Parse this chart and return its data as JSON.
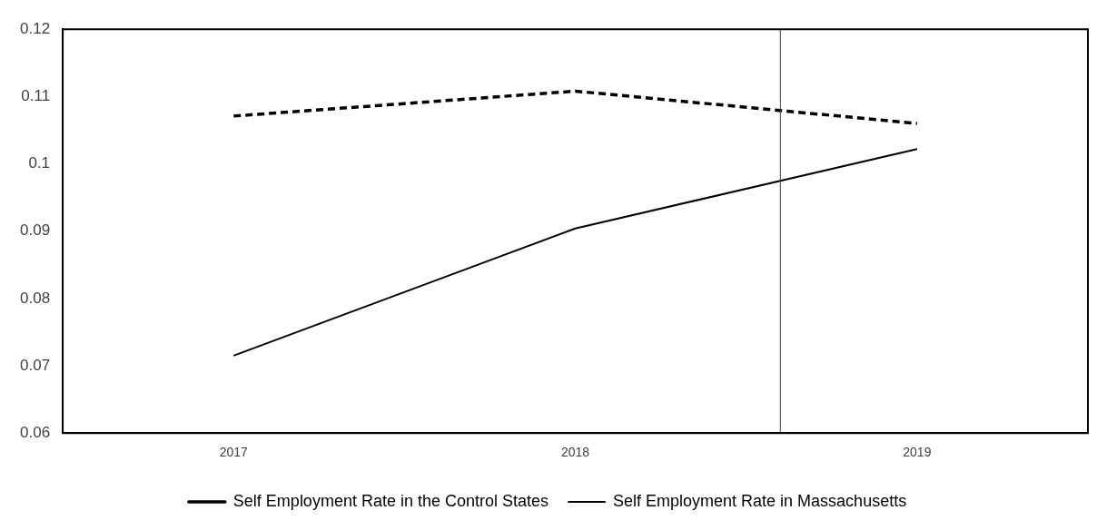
{
  "chart_data": {
    "type": "line",
    "x": [
      2017,
      2018,
      2019
    ],
    "xlim": [
      2016.5,
      2019.5
    ],
    "xticks": [
      2017,
      2018,
      2019
    ],
    "ylim": [
      0.06,
      0.12
    ],
    "yticks": [
      0.06,
      0.07,
      0.08,
      0.09,
      0.1,
      0.11,
      0.12
    ],
    "grid": false,
    "legend": "bottom",
    "marker": "none",
    "series": [
      {
        "name": "Self Employment Rate in the Control States",
        "color": "#000000",
        "line_style": "dashed",
        "values": [
          0.1071,
          0.1108,
          0.106
        ]
      },
      {
        "name": "Self Employment Rate in Massachusetts",
        "color": "#000000",
        "line_style": "solid",
        "values": [
          0.0715,
          0.0904,
          0.1022
        ]
      }
    ],
    "ref_lines": [
      {
        "axis": "x",
        "value": 2018.6,
        "color": "#404040",
        "line_style": "solid"
      }
    ]
  }
}
